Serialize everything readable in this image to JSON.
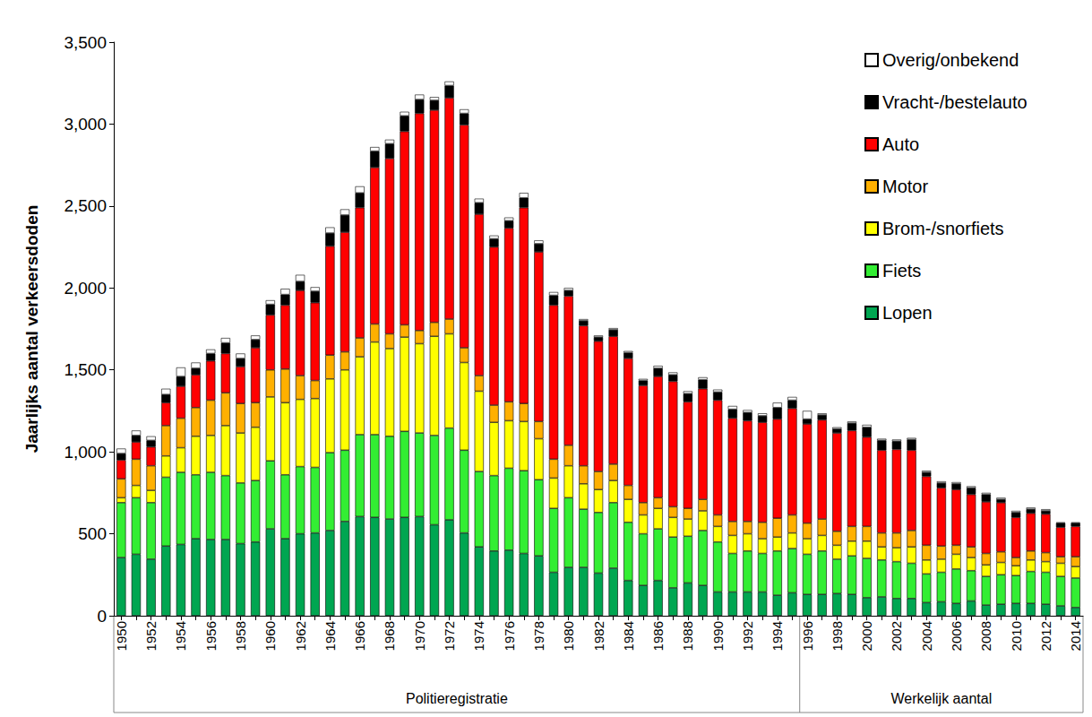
{
  "chart_data": {
    "type": "bar",
    "stacked": true,
    "grid": false,
    "legend": "top-right",
    "y_label": "Jaarlijks aantal verkeersdoden",
    "ylim": [
      0,
      3500
    ],
    "yticks": [
      0,
      500,
      1000,
      1500,
      2000,
      2500,
      3000,
      3500
    ],
    "annotations": [
      {
        "text": "Politieregistratie",
        "start": "1950"
      },
      {
        "text": "Werkelijk aantal",
        "start": "1996"
      }
    ],
    "categories": [
      "1950",
      null,
      "1952",
      null,
      "1954",
      null,
      "1956",
      null,
      "1958",
      null,
      "1960",
      null,
      "1962",
      null,
      "1964",
      null,
      "1966",
      null,
      "1968",
      null,
      "1970",
      null,
      "1972",
      null,
      "1974",
      null,
      "1976",
      null,
      "1978",
      null,
      "1980",
      null,
      "1982",
      null,
      "1984",
      null,
      "1986",
      null,
      "1988",
      null,
      "1990",
      null,
      "1992",
      null,
      "1994",
      null,
      "1996",
      null,
      "1998",
      null,
      "2000",
      null,
      "2002",
      null,
      "2004",
      null,
      "2006",
      null,
      "2008",
      null,
      "2010",
      null,
      "2012",
      null,
      "2014"
    ],
    "series": [
      {
        "name": "Lopen",
        "color": "#00a651",
        "values": [
          355,
          375,
          345,
          425,
          435,
          470,
          465,
          465,
          440,
          450,
          530,
          470,
          500,
          505,
          520,
          575,
          605,
          600,
          590,
          600,
          605,
          555,
          585,
          505,
          420,
          395,
          400,
          380,
          365,
          265,
          295,
          295,
          260,
          290,
          215,
          185,
          215,
          170,
          200,
          185,
          145,
          145,
          145,
          145,
          125,
          140,
          130,
          130,
          135,
          130,
          110,
          115,
          105,
          105,
          80,
          85,
          75,
          90,
          65,
          70,
          75,
          75,
          70,
          60,
          50
        ]
      },
      {
        "name": "Fiets",
        "color": "#33ee33",
        "values": [
          335,
          345,
          345,
          420,
          440,
          390,
          410,
          390,
          370,
          375,
          415,
          390,
          410,
          400,
          475,
          435,
          500,
          505,
          505,
          525,
          510,
          545,
          560,
          505,
          460,
          460,
          500,
          505,
          465,
          390,
          425,
          355,
          370,
          400,
          355,
          315,
          315,
          310,
          285,
          335,
          305,
          235,
          250,
          235,
          270,
          270,
          245,
          265,
          210,
          235,
          240,
          225,
          225,
          215,
          175,
          180,
          210,
          185,
          175,
          180,
          170,
          195,
          195,
          180,
          180
        ]
      },
      {
        "name": "Brom-/snorfiets",
        "color": "#ffff00",
        "values": [
          30,
          75,
          75,
          130,
          150,
          235,
          225,
          305,
          305,
          325,
          390,
          440,
          410,
          420,
          450,
          490,
          475,
          565,
          535,
          575,
          545,
          605,
          575,
          535,
          490,
          325,
          290,
          300,
          250,
          185,
          195,
          155,
          140,
          135,
          140,
          115,
          125,
          120,
          105,
          120,
          95,
          110,
          105,
          90,
          85,
          95,
          95,
          95,
          85,
          90,
          105,
          80,
          85,
          100,
          85,
          80,
          90,
          80,
          70,
          75,
          60,
          70,
          65,
          80,
          70
        ]
      },
      {
        "name": "Motor",
        "color": "#ffb000",
        "values": [
          115,
          160,
          150,
          185,
          180,
          175,
          215,
          200,
          180,
          150,
          165,
          205,
          145,
          110,
          145,
          110,
          115,
          110,
          90,
          75,
          80,
          85,
          90,
          90,
          95,
          105,
          115,
          110,
          105,
          115,
          125,
          110,
          110,
          100,
          85,
          75,
          65,
          65,
          65,
          70,
          70,
          85,
          75,
          100,
          115,
          110,
          95,
          100,
          85,
          90,
          90,
          85,
          90,
          100,
          90,
          80,
          55,
          65,
          70,
          65,
          50,
          55,
          55,
          40,
          60
        ]
      },
      {
        "name": "Auto",
        "color": "#ff0000",
        "values": [
          115,
          105,
          115,
          140,
          195,
          200,
          240,
          240,
          225,
          335,
          335,
          390,
          520,
          475,
          665,
          730,
          795,
          955,
          1070,
          1180,
          1325,
          1295,
          1350,
          1360,
          985,
          965,
          1060,
          1195,
          1035,
          940,
          910,
          855,
          795,
          780,
          775,
          715,
          740,
          765,
          650,
          675,
          700,
          630,
          615,
          610,
          605,
          650,
          605,
          605,
          600,
          585,
          545,
          505,
          510,
          490,
          420,
          355,
          340,
          320,
          315,
          300,
          245,
          230,
          235,
          180,
          185
        ]
      },
      {
        "name": "Vracht-/bestelauto",
        "color": "#000000",
        "values": [
          40,
          40,
          40,
          50,
          60,
          40,
          45,
          65,
          50,
          50,
          65,
          65,
          55,
          70,
          80,
          105,
          90,
          100,
          90,
          95,
          85,
          60,
          75,
          70,
          70,
          50,
          45,
          60,
          50,
          60,
          35,
          30,
          25,
          40,
          35,
          30,
          50,
          40,
          50,
          55,
          50,
          55,
          50,
          40,
          70,
          50,
          30,
          30,
          25,
          45,
          60,
          60,
          50,
          65,
          25,
          30,
          35,
          40,
          45,
          20,
          30,
          25,
          20,
          25,
          20
        ]
      },
      {
        "name": "Overig/onbekend",
        "color": "#ffffff",
        "values": [
          30,
          30,
          25,
          35,
          55,
          35,
          25,
          30,
          30,
          25,
          25,
          35,
          40,
          25,
          35,
          35,
          40,
          25,
          25,
          25,
          30,
          20,
          25,
          25,
          25,
          20,
          20,
          30,
          20,
          20,
          15,
          10,
          10,
          10,
          10,
          10,
          15,
          15,
          15,
          15,
          15,
          20,
          15,
          15,
          30,
          20,
          50,
          10,
          10,
          10,
          15,
          10,
          10,
          10,
          10,
          10,
          10,
          10,
          10,
          10,
          10,
          10,
          10,
          5,
          5
        ]
      }
    ]
  }
}
